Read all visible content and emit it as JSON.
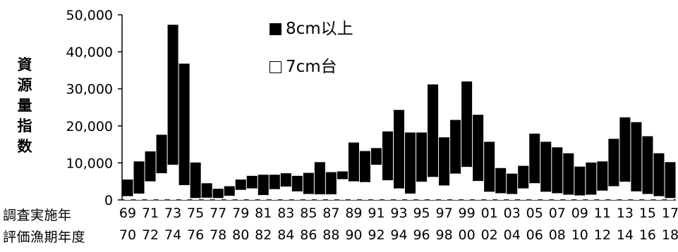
{
  "chart_data": {
    "type": "bar",
    "stacked": true,
    "ylabel": "資源量指数",
    "ylim": [
      0,
      50000
    ],
    "yticks": [
      "50,000",
      "40,000",
      "30,000",
      "20,000",
      "10,000",
      "0"
    ],
    "row_labels": [
      "調査実施年",
      "評価漁期年度"
    ],
    "survey_years": [
      "69",
      "70",
      "71",
      "72",
      "73",
      "74",
      "75",
      "76",
      "77",
      "78",
      "79",
      "80",
      "81",
      "82",
      "83",
      "84",
      "85",
      "86",
      "87",
      "88",
      "89",
      "90",
      "91",
      "92",
      "93",
      "94",
      "95",
      "96",
      "97",
      "98",
      "99",
      "00",
      "01",
      "02",
      "03",
      "04",
      "05",
      "06",
      "07",
      "08",
      "09",
      "10",
      "11",
      "12",
      "13",
      "14",
      "15",
      "16",
      "17"
    ],
    "xtick_row1": [
      "69",
      "71",
      "73",
      "75",
      "77",
      "79",
      "81",
      "83",
      "85",
      "87",
      "89",
      "91",
      "93",
      "95",
      "97",
      "99",
      "01",
      "03",
      "05",
      "07",
      "09",
      "11",
      "13",
      "15",
      "17"
    ],
    "xtick_row2": [
      "70",
      "72",
      "74",
      "76",
      "78",
      "80",
      "82",
      "84",
      "86",
      "88",
      "90",
      "92",
      "94",
      "96",
      "98",
      "00",
      "02",
      "04",
      "06",
      "08",
      "10",
      "12",
      "14",
      "16",
      "18"
    ],
    "series": [
      {
        "name": "8cm以上",
        "color": "#000000",
        "values": [
          4500,
          8700,
          8100,
          10400,
          37800,
          32800,
          9600,
          3900,
          2500,
          2600,
          2800,
          3400,
          5500,
          3900,
          3600,
          4200,
          5700,
          8700,
          6000,
          2100,
          10500,
          8400,
          4500,
          13200,
          21200,
          16500,
          13300,
          25000,
          13000,
          14500,
          23100,
          17900,
          13500,
          6800,
          5500,
          6100,
          13400,
          13500,
          12400,
          11200,
          7800,
          8700,
          7900,
          12800,
          17400,
          18700,
          15600,
          11600,
          9700
        ]
      },
      {
        "name": "7cm台",
        "color": "#ffffff",
        "values": [
          1000,
          1700,
          5000,
          7200,
          9500,
          4000,
          500,
          600,
          500,
          1100,
          2700,
          3100,
          1300,
          2900,
          3600,
          2300,
          1600,
          1500,
          1500,
          5600,
          5000,
          4800,
          9500,
          5300,
          3100,
          1700,
          4900,
          6200,
          3900,
          7100,
          8900,
          5100,
          2200,
          1800,
          1600,
          3100,
          4500,
          2200,
          1800,
          1400,
          1200,
          1400,
          2500,
          3700,
          4900,
          2300,
          1600,
          1000,
          500
        ]
      }
    ]
  }
}
